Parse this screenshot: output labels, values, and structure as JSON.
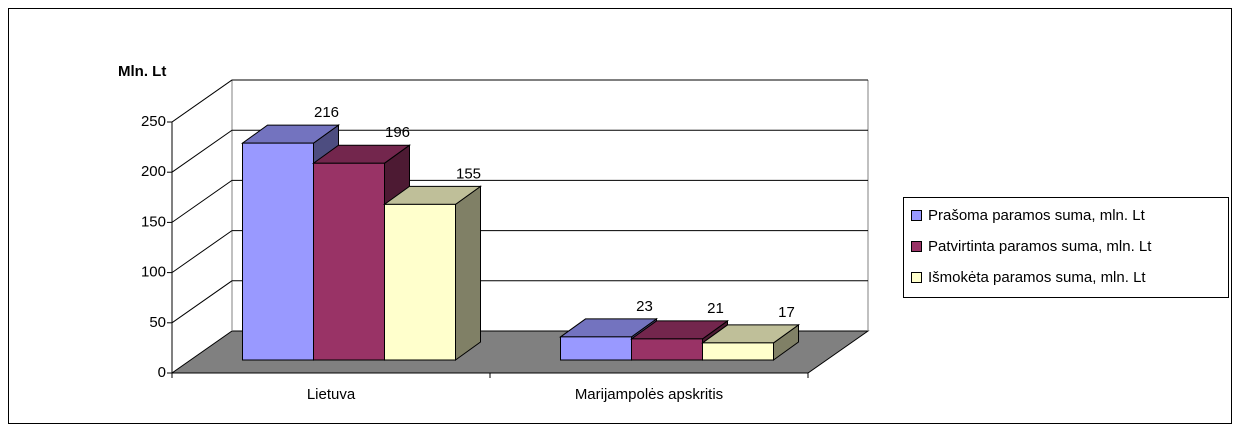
{
  "chart_data": {
    "type": "bar3d",
    "y_label": "Mln. Lt",
    "categories": [
      "Lietuva",
      "Marijampolės apskritis"
    ],
    "series": [
      {
        "name": "Prašoma paramos suma, mln. Lt",
        "color": "#9999ff",
        "values": [
          216,
          23
        ]
      },
      {
        "name": "Patvirtinta paramos suma, mln. Lt",
        "color": "#993366",
        "values": [
          196,
          21
        ]
      },
      {
        "name": "Išmokėta paramos suma, mln. Lt",
        "color": "#ffffcc",
        "values": [
          155,
          17
        ]
      }
    ],
    "ylim": [
      0,
      250
    ],
    "yticks": [
      0,
      50,
      100,
      150,
      200,
      250
    ],
    "grid": true,
    "legend": "right",
    "floor_color": "#808080"
  }
}
